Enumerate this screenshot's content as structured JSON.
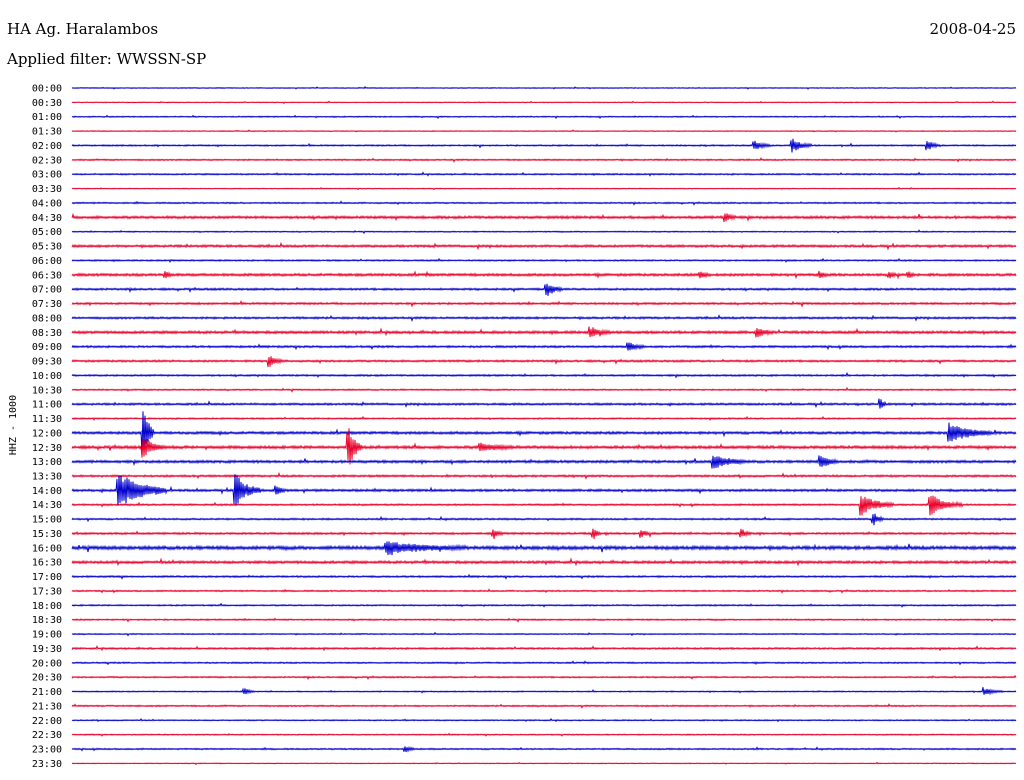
{
  "header": {
    "station": "HA Ag. Haralambos",
    "filter": "Applied filter: WWSSN-SP",
    "date": "2008-04-25"
  },
  "chart_data": {
    "type": "line",
    "title": "HA Ag. Haralambos",
    "subtitle": "Applied filter: WWSSN-SP",
    "date": "2008-04-25",
    "ylabel": "HHZ - 1000",
    "traces": [
      "00:00",
      "00:30",
      "01:00",
      "01:30",
      "02:00",
      "02:30",
      "03:00",
      "03:30",
      "04:00",
      "04:30",
      "05:00",
      "05:30",
      "06:00",
      "06:30",
      "07:00",
      "07:30",
      "08:00",
      "08:30",
      "09:00",
      "09:30",
      "10:00",
      "10:30",
      "11:00",
      "11:30",
      "12:00",
      "12:30",
      "13:00",
      "13:30",
      "14:00",
      "14:30",
      "15:00",
      "15:30",
      "16:00",
      "16:30",
      "17:00",
      "17:30",
      "18:00",
      "18:30",
      "19:00",
      "19:30",
      "20:00",
      "20:30",
      "21:00",
      "21:30",
      "22:00",
      "22:30",
      "23:00",
      "23:30"
    ],
    "trace_colors": [
      "#0000cc",
      "#e8002a"
    ],
    "noise": [
      0.3,
      0.3,
      0.4,
      0.3,
      0.5,
      0.5,
      0.5,
      0.3,
      0.5,
      0.9,
      0.4,
      0.8,
      0.5,
      0.9,
      0.7,
      0.7,
      0.7,
      0.9,
      0.7,
      0.7,
      0.6,
      0.5,
      0.7,
      0.5,
      0.9,
      1.0,
      0.9,
      0.7,
      0.8,
      0.6,
      0.6,
      0.7,
      1.2,
      0.9,
      0.6,
      0.5,
      0.5,
      0.5,
      0.4,
      0.6,
      0.5,
      0.5,
      0.4,
      0.5,
      0.4,
      0.4,
      0.5,
      0.3
    ],
    "events": [
      {
        "trace": "02:00",
        "minute": 21.7,
        "amplitude": 5,
        "duration": 0.5
      },
      {
        "trace": "02:00",
        "minute": 22.9,
        "amplitude": 7,
        "duration": 0.6
      },
      {
        "trace": "02:00",
        "minute": 27.2,
        "amplitude": 5,
        "duration": 0.4
      },
      {
        "trace": "04:30",
        "minute": 20.8,
        "amplitude": 4,
        "duration": 0.3
      },
      {
        "trace": "06:30",
        "minute": 3.0,
        "amplitude": 3,
        "duration": 0.2
      },
      {
        "trace": "06:30",
        "minute": 20.0,
        "amplitude": 3,
        "duration": 0.3
      },
      {
        "trace": "06:30",
        "minute": 23.8,
        "amplitude": 3,
        "duration": 0.2
      },
      {
        "trace": "06:30",
        "minute": 26.0,
        "amplitude": 3,
        "duration": 0.2
      },
      {
        "trace": "06:30",
        "minute": 26.6,
        "amplitude": 3,
        "duration": 0.2
      },
      {
        "trace": "07:00",
        "minute": 15.1,
        "amplitude": 7,
        "duration": 0.5
      },
      {
        "trace": "08:30",
        "minute": 16.5,
        "amplitude": 5,
        "duration": 0.6
      },
      {
        "trace": "08:30",
        "minute": 21.8,
        "amplitude": 4,
        "duration": 0.5
      },
      {
        "trace": "09:00",
        "minute": 17.7,
        "amplitude": 5,
        "duration": 0.5
      },
      {
        "trace": "09:30",
        "minute": 6.3,
        "amplitude": 6,
        "duration": 0.4
      },
      {
        "trace": "11:00",
        "minute": 25.7,
        "amplitude": 5,
        "duration": 0.2
      },
      {
        "trace": "12:00",
        "minute": 2.3,
        "amplitude": 28,
        "duration": 0.3
      },
      {
        "trace": "12:00",
        "minute": 27.9,
        "amplitude": 10,
        "duration": 1.3
      },
      {
        "trace": "12:30",
        "minute": 2.3,
        "amplitude": 10,
        "duration": 0.6
      },
      {
        "trace": "12:30",
        "minute": 8.8,
        "amplitude": 22,
        "duration": 0.4
      },
      {
        "trace": "12:30",
        "minute": 13.0,
        "amplitude": 4,
        "duration": 1.0
      },
      {
        "trace": "13:00",
        "minute": 20.4,
        "amplitude": 7,
        "duration": 1.0
      },
      {
        "trace": "13:00",
        "minute": 23.8,
        "amplitude": 7,
        "duration": 0.5
      },
      {
        "trace": "14:00",
        "minute": 1.5,
        "amplitude": 18,
        "duration": 1.5
      },
      {
        "trace": "14:00",
        "minute": 5.2,
        "amplitude": 16,
        "duration": 0.8
      },
      {
        "trace": "14:00",
        "minute": 6.5,
        "amplitude": 5,
        "duration": 0.3
      },
      {
        "trace": "14:30",
        "minute": 25.1,
        "amplitude": 10,
        "duration": 1.0
      },
      {
        "trace": "14:30",
        "minute": 27.3,
        "amplitude": 10,
        "duration": 1.0
      },
      {
        "trace": "15:00",
        "minute": 25.5,
        "amplitude": 6,
        "duration": 0.3
      },
      {
        "trace": "15:30",
        "minute": 13.4,
        "amplitude": 4,
        "duration": 0.3
      },
      {
        "trace": "15:30",
        "minute": 16.6,
        "amplitude": 6,
        "duration": 0.2
      },
      {
        "trace": "15:30",
        "minute": 18.1,
        "amplitude": 4,
        "duration": 0.3
      },
      {
        "trace": "15:30",
        "minute": 21.3,
        "amplitude": 4,
        "duration": 0.3
      },
      {
        "trace": "16:00",
        "minute": 10.0,
        "amplitude": 6,
        "duration": 2.5
      },
      {
        "trace": "21:00",
        "minute": 5.5,
        "amplitude": 3,
        "duration": 0.3
      },
      {
        "trace": "21:00",
        "minute": 29.0,
        "amplitude": 3,
        "duration": 0.6
      },
      {
        "trace": "23:00",
        "minute": 10.6,
        "amplitude": 3,
        "duration": 0.3
      }
    ],
    "x_minutes_per_trace": 30
  }
}
